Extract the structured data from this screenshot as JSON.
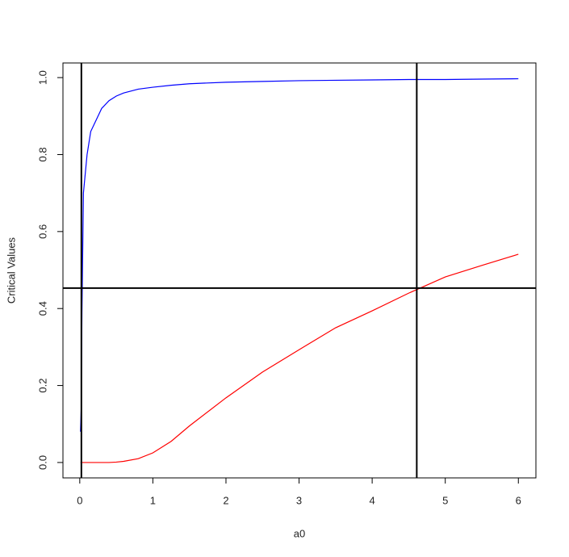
{
  "chart_data": {
    "type": "line",
    "xlabel": "a0",
    "ylabel": "Critical Values",
    "x": [
      0.01,
      0.02,
      0.03,
      0.05,
      0.1,
      0.15,
      0.2,
      0.3,
      0.4,
      0.5,
      0.6,
      0.8,
      1,
      1.25,
      1.5,
      2,
      2.5,
      3,
      3.5,
      4,
      4.5,
      5,
      5.5,
      6
    ],
    "series": [
      {
        "color": "#0000ff",
        "values": [
          0.08,
          0.14,
          0.39,
          0.7,
          0.8,
          0.86,
          0.88,
          0.92,
          0.94,
          0.952,
          0.96,
          0.97,
          0.975,
          0.98,
          0.984,
          0.988,
          0.99,
          0.992,
          0.993,
          0.994,
          0.995,
          0.995,
          0.996,
          0.997
        ]
      },
      {
        "color": "#ff0000",
        "values": [
          0,
          0,
          0,
          0,
          0,
          0,
          0,
          0,
          0,
          0.001,
          0.003,
          0.01,
          0.025,
          0.055,
          0.095,
          0.168,
          0.235,
          0.293,
          0.35,
          0.394,
          0.44,
          0.482,
          0.512,
          0.541
        ]
      }
    ],
    "vlines": [
      0.022,
      4.61
    ],
    "hlines": [
      0.453
    ],
    "xlim": [
      -0.23,
      6.24
    ],
    "ylim": [
      -0.04,
      1.038
    ],
    "xticks": [
      0,
      1,
      2,
      3,
      4,
      5,
      6
    ],
    "yticks": [
      {
        "value": 0,
        "label": "0.0"
      },
      {
        "value": 0.2,
        "label": "0.2"
      },
      {
        "value": 0.4,
        "label": "0.4"
      },
      {
        "value": 0.6,
        "label": "0.6"
      },
      {
        "value": 0.8,
        "label": "0.8"
      },
      {
        "value": 1,
        "label": "1.0"
      }
    ]
  }
}
